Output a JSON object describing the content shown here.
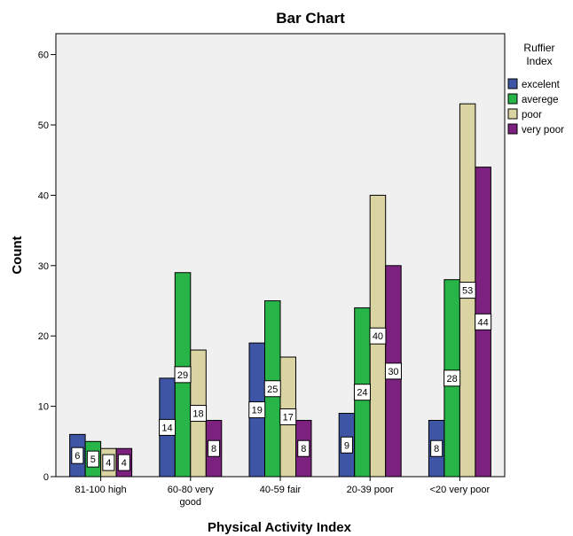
{
  "chart_data": {
    "type": "bar",
    "title": "Bar Chart",
    "xlabel": "Physical Activity Index",
    "ylabel": "Count",
    "ylim": [
      0,
      63
    ],
    "yticks": [
      0,
      10,
      20,
      30,
      40,
      50,
      60
    ],
    "categories": [
      [
        "81-100 high"
      ],
      [
        "60-80 very",
        "good"
      ],
      [
        "40-59 fair"
      ],
      [
        "20-39 poor"
      ],
      [
        "<20 very poor"
      ]
    ],
    "legend": {
      "title": [
        "Ruffier",
        "Index"
      ],
      "placement": "right"
    },
    "series": [
      {
        "name": "excelent",
        "color": "#3d55a4",
        "values": [
          6,
          14,
          19,
          9,
          8
        ]
      },
      {
        "name": "averege",
        "color": "#27b547",
        "values": [
          5,
          29,
          25,
          24,
          28
        ]
      },
      {
        "name": "poor",
        "color": "#d9d4a2",
        "values": [
          4,
          18,
          17,
          40,
          53
        ]
      },
      {
        "name": "very poor",
        "color": "#7d2180",
        "values": [
          4,
          8,
          8,
          30,
          44
        ]
      }
    ],
    "plot_background": "#f0f0f0"
  }
}
